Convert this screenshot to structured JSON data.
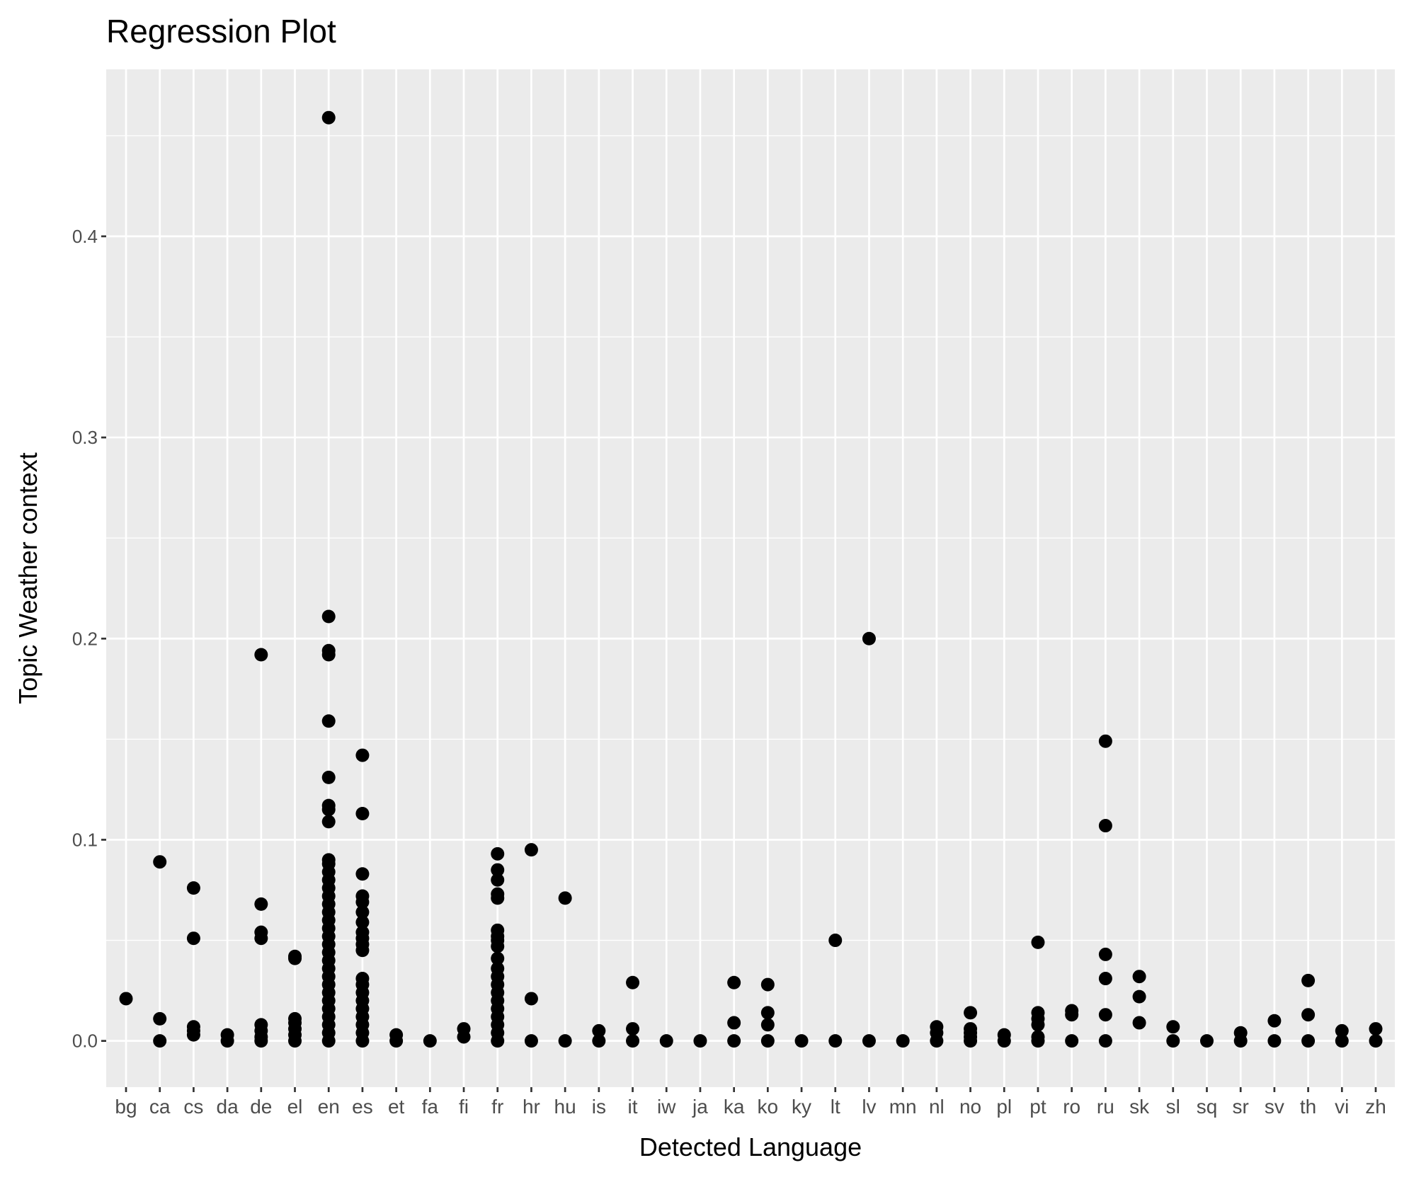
{
  "chart_data": {
    "type": "scatter",
    "title": "Regression Plot",
    "xlabel": "Detected Language",
    "ylabel": "Topic Weather context",
    "ylim": [
      -0.023,
      0.483
    ],
    "yticks": [
      "0.0",
      "0.1",
      "0.2",
      "0.3",
      "0.4"
    ],
    "grid": true,
    "point_color": "#000000",
    "panel_color": "#EBEBEB",
    "categories": [
      "bg",
      "ca",
      "cs",
      "da",
      "de",
      "el",
      "en",
      "es",
      "et",
      "fa",
      "fi",
      "fr",
      "hr",
      "hu",
      "is",
      "it",
      "iw",
      "ja",
      "ka",
      "ko",
      "ky",
      "lt",
      "lv",
      "mn",
      "nl",
      "no",
      "pl",
      "pt",
      "ro",
      "ru",
      "sk",
      "sl",
      "sq",
      "sr",
      "sv",
      "th",
      "vi",
      "zh"
    ],
    "points": {
      "bg": [
        0.021
      ],
      "ca": [
        0,
        0.011,
        0.089
      ],
      "cs": [
        0.003,
        0.005,
        0.007,
        0.051,
        0.076
      ],
      "da": [
        0,
        0.003
      ],
      "de": [
        0,
        0.002,
        0.005,
        0.008,
        0.051,
        0.054,
        0.068,
        0.192
      ],
      "el": [
        0,
        0.003,
        0.006,
        0.009,
        0.011,
        0.041,
        0.042
      ],
      "en": [
        0,
        0.004,
        0.008,
        0.012,
        0.016,
        0.02,
        0.024,
        0.028,
        0.032,
        0.036,
        0.04,
        0.044,
        0.048,
        0.052,
        0.056,
        0.06,
        0.064,
        0.068,
        0.072,
        0.076,
        0.08,
        0.084,
        0.088,
        0.09,
        0.109,
        0.115,
        0.117,
        0.131,
        0.159,
        0.192,
        0.194,
        0.211,
        0.459
      ],
      "es": [
        0,
        0.004,
        0.008,
        0.012,
        0.016,
        0.02,
        0.024,
        0.028,
        0.031,
        0.045,
        0.048,
        0.051,
        0.054,
        0.059,
        0.064,
        0.069,
        0.072,
        0.083,
        0.113,
        0.142
      ],
      "et": [
        0,
        0.003
      ],
      "fa": [
        0
      ],
      "fi": [
        0.002,
        0.006
      ],
      "fr": [
        0,
        0.004,
        0.008,
        0.012,
        0.016,
        0.02,
        0.024,
        0.028,
        0.032,
        0.036,
        0.041,
        0.047,
        0.05,
        0.052,
        0.055,
        0.071,
        0.073,
        0.08,
        0.085,
        0.093
      ],
      "hr": [
        0,
        0.021,
        0.095
      ],
      "hu": [
        0,
        0.071
      ],
      "is": [
        0,
        0.005
      ],
      "it": [
        0,
        0.006,
        0.029
      ],
      "iw": [
        0
      ],
      "ja": [
        0
      ],
      "ka": [
        0,
        0.009,
        0.029
      ],
      "ko": [
        0,
        0.008,
        0.014,
        0.028
      ],
      "ky": [
        0
      ],
      "lt": [
        0,
        0.05
      ],
      "lv": [
        0,
        0.2
      ],
      "mn": [
        0
      ],
      "nl": [
        0,
        0.004,
        0.007
      ],
      "no": [
        0,
        0.002,
        0.004,
        0.006,
        0.014
      ],
      "pl": [
        0,
        0.003
      ],
      "pt": [
        0,
        0.002,
        0.008,
        0.011,
        0.014,
        0.049
      ],
      "ro": [
        0,
        0.013,
        0.015
      ],
      "ru": [
        0,
        0.013,
        0.031,
        0.043,
        0.107,
        0.149
      ],
      "sk": [
        0.009,
        0.022,
        0.032
      ],
      "sl": [
        0,
        0.007
      ],
      "sq": [
        0
      ],
      "sr": [
        0,
        0.004
      ],
      "sv": [
        0,
        0.01
      ],
      "th": [
        0,
        0.013,
        0.03
      ],
      "vi": [
        0,
        0.005
      ],
      "zh": [
        0,
        0.006
      ]
    }
  }
}
